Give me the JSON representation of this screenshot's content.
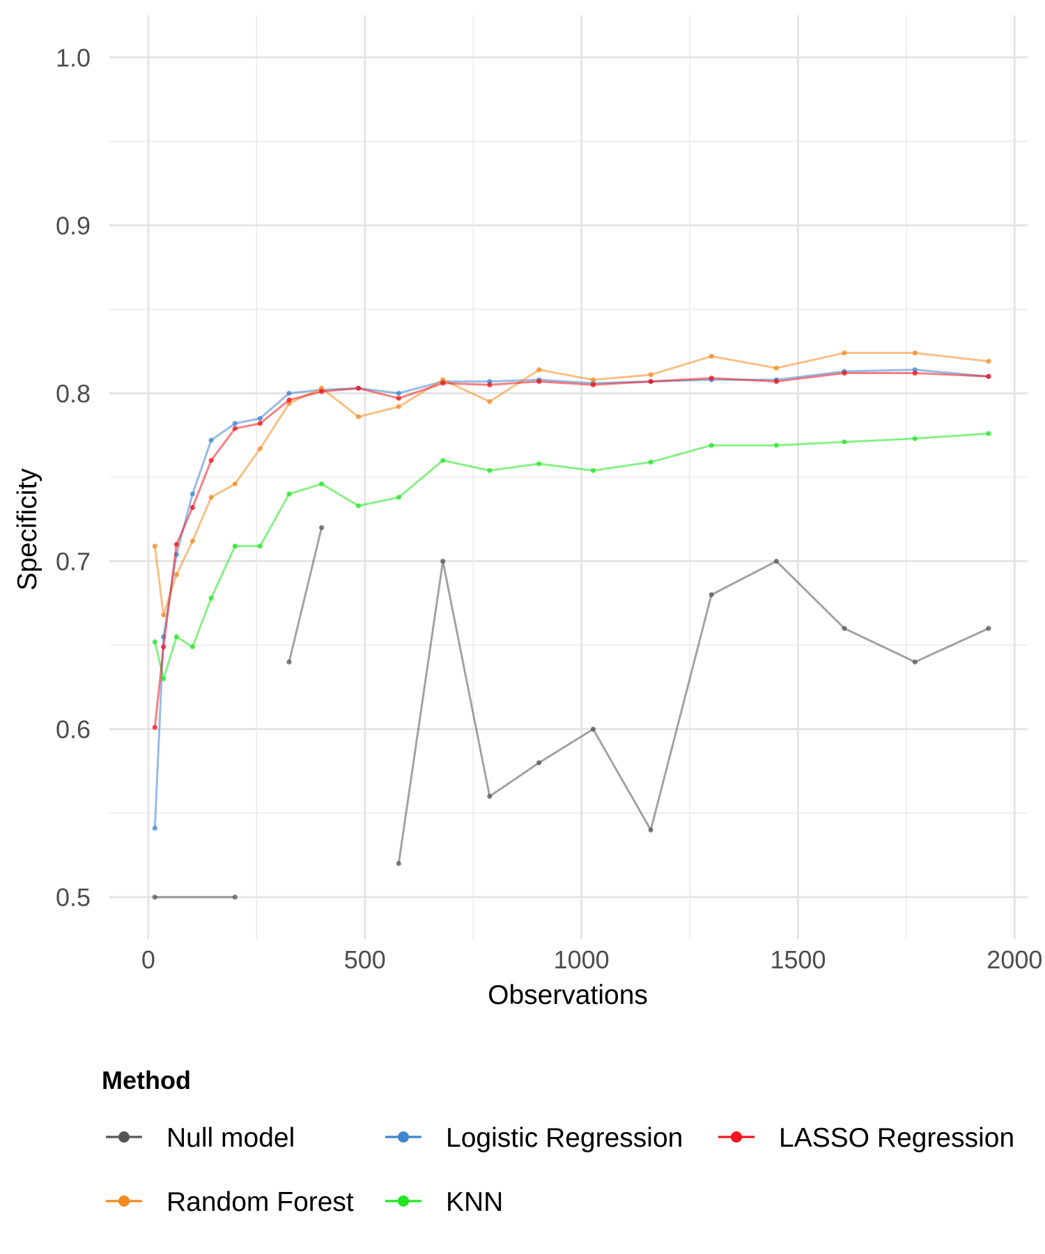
{
  "chart_data": {
    "type": "line",
    "title": "",
    "xlabel": "Observations",
    "ylabel": "Specificity",
    "xlim": [
      -90,
      2030
    ],
    "ylim": [
      0.475,
      1.025
    ],
    "x_ticks": [
      0,
      500,
      1000,
      1500,
      2000
    ],
    "x_tick_labels": [
      "0",
      "500",
      "1000",
      "1500",
      "2000"
    ],
    "y_ticks": [
      0.5,
      0.6,
      0.7,
      0.8,
      0.9,
      1.0
    ],
    "y_tick_labels": [
      "0.5",
      "0.6",
      "0.7",
      "0.8",
      "0.9",
      "1.0"
    ],
    "grid": true,
    "legend": {
      "title": "Method",
      "position": "bottom"
    },
    "series": [
      {
        "name": "Null model",
        "color": "#555555",
        "points": [
          [
            15,
            0.5
          ],
          [
            200,
            0.5
          ],
          [
            325,
            0.64
          ],
          [
            400,
            0.72
          ],
          [
            578,
            0.52
          ],
          [
            680,
            0.7
          ],
          [
            788,
            0.56
          ],
          [
            902,
            0.58
          ],
          [
            1027,
            0.6
          ],
          [
            1160,
            0.54
          ],
          [
            1300,
            0.68
          ],
          [
            1450,
            0.7
          ],
          [
            1607,
            0.66
          ],
          [
            1770,
            0.64
          ],
          [
            1940,
            0.66
          ]
        ],
        "segments": [
          [
            0,
            1
          ],
          [
            2,
            3
          ],
          [
            4,
            14
          ]
        ]
      },
      {
        "name": "Logistic Regression",
        "color": "#3f85d0",
        "points": [
          [
            15,
            0.541
          ],
          [
            35,
            0.655
          ],
          [
            65,
            0.704
          ],
          [
            102,
            0.74
          ],
          [
            145,
            0.772
          ],
          [
            200,
            0.782
          ],
          [
            258,
            0.785
          ],
          [
            325,
            0.8
          ],
          [
            400,
            0.802
          ],
          [
            485,
            0.803
          ],
          [
            578,
            0.8
          ],
          [
            680,
            0.807
          ],
          [
            788,
            0.807
          ],
          [
            902,
            0.808
          ],
          [
            1027,
            0.806
          ],
          [
            1160,
            0.807
          ],
          [
            1300,
            0.808
          ],
          [
            1450,
            0.808
          ],
          [
            1607,
            0.813
          ],
          [
            1770,
            0.814
          ],
          [
            1940,
            0.81
          ]
        ],
        "segments": [
          [
            0,
            20
          ]
        ]
      },
      {
        "name": "LASSO Regression",
        "color": "#f2161e",
        "points": [
          [
            15,
            0.601
          ],
          [
            35,
            0.649
          ],
          [
            65,
            0.71
          ],
          [
            102,
            0.732
          ],
          [
            145,
            0.76
          ],
          [
            200,
            0.779
          ],
          [
            258,
            0.782
          ],
          [
            325,
            0.796
          ],
          [
            400,
            0.801
          ],
          [
            485,
            0.803
          ],
          [
            578,
            0.797
          ],
          [
            680,
            0.806
          ],
          [
            788,
            0.805
          ],
          [
            902,
            0.807
          ],
          [
            1027,
            0.805
          ],
          [
            1160,
            0.807
          ],
          [
            1300,
            0.809
          ],
          [
            1450,
            0.807
          ],
          [
            1607,
            0.812
          ],
          [
            1770,
            0.812
          ],
          [
            1940,
            0.81
          ]
        ],
        "segments": [
          [
            0,
            20
          ]
        ]
      },
      {
        "name": "Random Forest",
        "color": "#f58a1f",
        "points": [
          [
            15,
            0.709
          ],
          [
            35,
            0.668
          ],
          [
            65,
            0.692
          ],
          [
            102,
            0.712
          ],
          [
            145,
            0.738
          ],
          [
            200,
            0.746
          ],
          [
            258,
            0.767
          ],
          [
            325,
            0.794
          ],
          [
            400,
            0.803
          ],
          [
            485,
            0.786
          ],
          [
            578,
            0.792
          ],
          [
            680,
            0.808
          ],
          [
            788,
            0.795
          ],
          [
            902,
            0.814
          ],
          [
            1027,
            0.808
          ],
          [
            1160,
            0.811
          ],
          [
            1300,
            0.822
          ],
          [
            1450,
            0.815
          ],
          [
            1607,
            0.824
          ],
          [
            1770,
            0.824
          ],
          [
            1940,
            0.819
          ]
        ],
        "segments": [
          [
            0,
            20
          ]
        ]
      },
      {
        "name": "KNN",
        "color": "#22e622",
        "points": [
          [
            15,
            0.652
          ],
          [
            35,
            0.63
          ],
          [
            65,
            0.655
          ],
          [
            102,
            0.649
          ],
          [
            145,
            0.678
          ],
          [
            200,
            0.709
          ],
          [
            258,
            0.709
          ],
          [
            325,
            0.74
          ],
          [
            400,
            0.746
          ],
          [
            485,
            0.733
          ],
          [
            578,
            0.738
          ],
          [
            680,
            0.76
          ],
          [
            788,
            0.754
          ],
          [
            902,
            0.758
          ],
          [
            1027,
            0.754
          ],
          [
            1160,
            0.759
          ],
          [
            1300,
            0.769
          ],
          [
            1450,
            0.769
          ],
          [
            1607,
            0.771
          ],
          [
            1770,
            0.773
          ],
          [
            1940,
            0.776
          ]
        ],
        "segments": [
          [
            0,
            20
          ]
        ]
      }
    ],
    "draw_order": [
      "Null model",
      "Logistic Regression",
      "Random Forest",
      "KNN",
      "LASSO Regression"
    ],
    "legend_rows": [
      [
        "Null model",
        "Logistic Regression",
        "LASSO Regression"
      ],
      [
        "Random Forest",
        "KNN"
      ]
    ]
  }
}
